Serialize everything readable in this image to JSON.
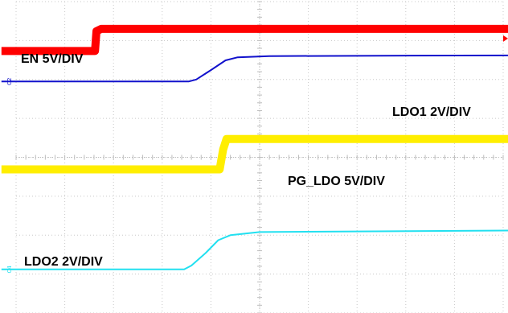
{
  "chart_data": {
    "type": "line",
    "title": "",
    "xlabel": "",
    "ylabel": "",
    "grid": true,
    "legend": "none",
    "grid_divisions": {
      "x": 10,
      "y": 8
    },
    "xlim": [
      0,
      10
    ],
    "ylim": [
      0,
      8
    ],
    "series": [
      {
        "name": "EN 5V/DIV",
        "color": "#ff0000",
        "channel_marker": "C1",
        "thick": true,
        "points": [
          [
            -0.3,
            6.73
          ],
          [
            1.62,
            6.73
          ],
          [
            1.65,
            7.24
          ],
          [
            1.75,
            7.3
          ],
          [
            10.2,
            7.3
          ]
        ]
      },
      {
        "name": "LDO1 2V/DIV",
        "color": "#1111cc",
        "channel_marker": "C2",
        "thick": false,
        "points": [
          [
            -0.3,
            5.95
          ],
          [
            3.55,
            5.95
          ],
          [
            3.7,
            6.0
          ],
          [
            4.0,
            6.24
          ],
          [
            4.3,
            6.49
          ],
          [
            4.55,
            6.57
          ],
          [
            5.2,
            6.6
          ],
          [
            10.2,
            6.62
          ]
        ]
      },
      {
        "name": "PG_LDO 5V/DIV",
        "color": "#ffee00",
        "channel_marker": "C3",
        "thick": true,
        "points": [
          [
            -0.3,
            3.69
          ],
          [
            4.18,
            3.69
          ],
          [
            4.25,
            4.2
          ],
          [
            4.32,
            4.47
          ],
          [
            10.2,
            4.47
          ]
        ]
      },
      {
        "name": "LDO2 2V/DIV",
        "color": "#22e0f0",
        "channel_marker": "C4",
        "thick": false,
        "points": [
          [
            -0.3,
            1.12
          ],
          [
            3.45,
            1.12
          ],
          [
            3.6,
            1.22
          ],
          [
            3.9,
            1.55
          ],
          [
            4.15,
            1.87
          ],
          [
            4.4,
            2.0
          ],
          [
            5.0,
            2.08
          ],
          [
            10.2,
            2.12
          ]
        ]
      }
    ]
  }
}
